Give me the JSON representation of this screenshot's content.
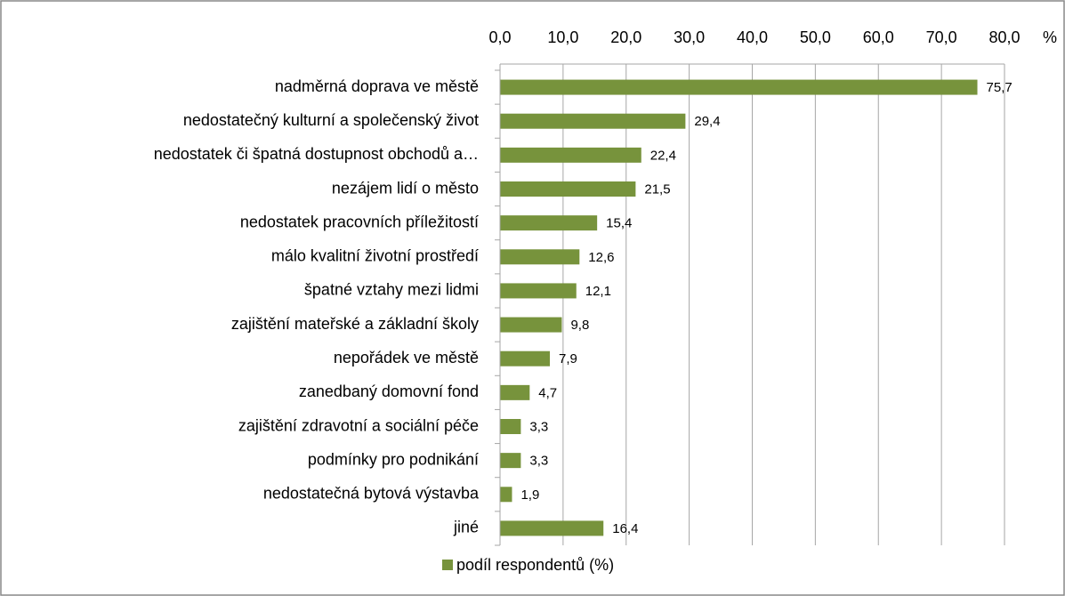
{
  "chart_data": {
    "type": "barh",
    "categories": [
      "nadměrná doprava ve městě",
      "nedostatečný kulturní a společenský život",
      "nedostatek či špatná dostupnost obchodů a…",
      "nezájem lidí o město",
      "nedostatek pracovních příležitostí",
      "málo kvalitní životní prostředí",
      "špatné vztahy mezi lidmi",
      "zajištění mateřské a základní školy",
      "nepořádek ve městě",
      "zanedbaný domovní fond",
      "zajištění zdravotní a sociální péče",
      "podmínky pro podnikání",
      "nedostatečná bytová výstavba",
      "jiné"
    ],
    "series": [
      {
        "name": "podíl respondentů (%)",
        "color": "#77933c",
        "values": [
          75.7,
          29.4,
          22.4,
          21.5,
          15.4,
          12.6,
          12.1,
          9.8,
          7.9,
          4.7,
          3.3,
          3.3,
          1.9,
          16.4
        ],
        "value_labels": [
          "75,7",
          "29,4",
          "22,4",
          "21,5",
          "15,4",
          "12,6",
          "12,1",
          "9,8",
          "7,9",
          "4,7",
          "3,3",
          "3,3",
          "1,9",
          "16,4"
        ]
      }
    ],
    "xlabel": "%",
    "xlim": [
      0,
      80
    ],
    "xticks": [
      {
        "value": 0,
        "label": "0,0"
      },
      {
        "value": 10,
        "label": "10,0"
      },
      {
        "value": 20,
        "label": "20,0"
      },
      {
        "value": 30,
        "label": "30,0"
      },
      {
        "value": 40,
        "label": "40,0"
      },
      {
        "value": 50,
        "label": "50,0"
      },
      {
        "value": 60,
        "label": "60,0"
      },
      {
        "value": 70,
        "label": "70,0"
      },
      {
        "value": 80,
        "label": "80,0"
      }
    ],
    "grid": true,
    "legend": "bottom"
  }
}
